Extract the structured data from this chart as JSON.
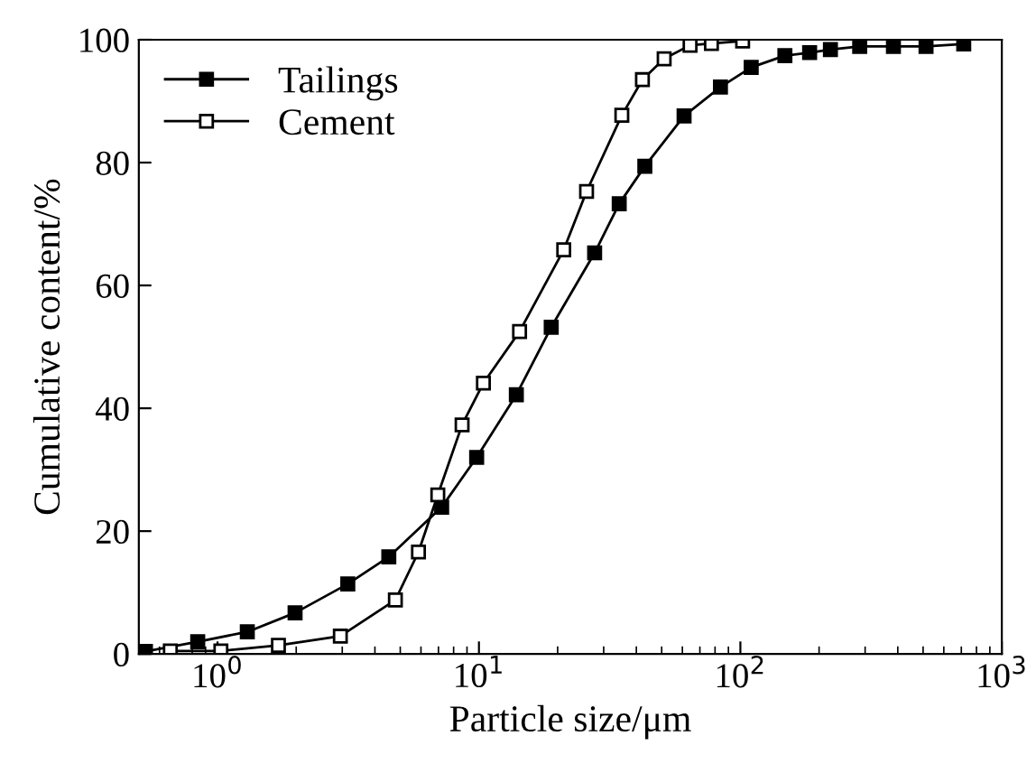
{
  "chart_data": {
    "type": "line",
    "xlabel": "Particle size/μm",
    "ylabel": "Cumulative content/%",
    "log": "x",
    "xlim": [
      0.5,
      1000
    ],
    "ylim": [
      0,
      100
    ],
    "xticks": [
      {
        "value": 1,
        "label": "10$^{0}$"
      },
      {
        "value": 10,
        "label": "10$^{1}$"
      },
      {
        "value": 100,
        "label": "10$^{2}$"
      },
      {
        "value": 1000,
        "label": "10$^{3}$"
      }
    ],
    "yticks": [
      0,
      20,
      40,
      60,
      80,
      100
    ],
    "grid": false,
    "legend": "top left",
    "line_style": "solid",
    "series": [
      {
        "name": "Tailings",
        "color": "#000000",
        "marker": "square",
        "x": [
          0.53,
          0.84,
          1.3,
          1.98,
          3.15,
          4.52,
          7.2,
          9.8,
          13.9,
          18.9,
          27.7,
          34.4,
          43.1,
          60.9,
          83.9,
          110,
          148,
          184,
          221,
          286,
          385,
          513,
          715
        ],
        "values": [
          0.4,
          2.0,
          3.6,
          6.7,
          11.4,
          15.8,
          23.9,
          32.0,
          42.2,
          53.2,
          65.3,
          73.3,
          79.4,
          87.6,
          92.3,
          95.5,
          97.4,
          97.9,
          98.4,
          98.9,
          98.9,
          98.9,
          99.3
        ]
      },
      {
        "name": "Cement",
        "color": "#000000",
        "marker": "square",
        "x": [
          0.66,
          1.03,
          1.71,
          2.95,
          4.79,
          5.87,
          6.96,
          8.62,
          10.4,
          14.3,
          21.1,
          25.8,
          35.2,
          42.2,
          51.1,
          64.2,
          77.5,
          102
        ],
        "values": [
          0.5,
          0.5,
          1.4,
          2.9,
          8.8,
          16.6,
          25.9,
          37.3,
          44.1,
          52.5,
          65.8,
          75.3,
          87.7,
          93.5,
          96.9,
          99.1,
          99.4,
          99.8
        ]
      }
    ]
  }
}
